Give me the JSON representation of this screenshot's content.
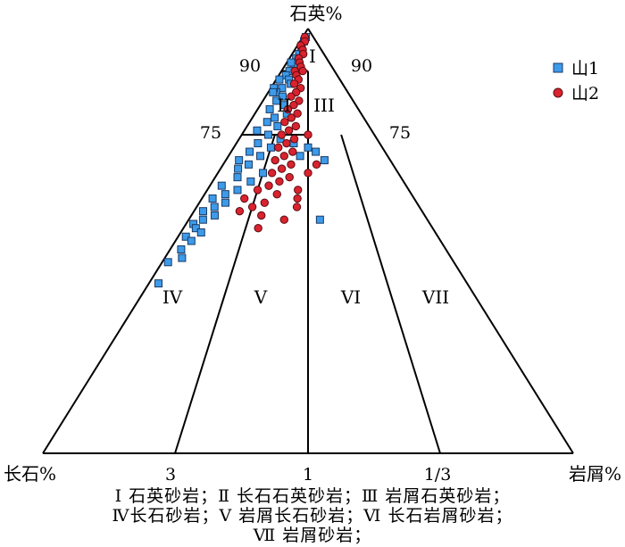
{
  "chart_data": {
    "type": "scatter",
    "diagram": "ternary",
    "apex_labels": {
      "top": "石英%",
      "left": "长石%",
      "right": "岩屑%"
    },
    "quartz_tick_labels": {
      "left_90": "90",
      "right_90": "90",
      "left_75": "75",
      "right_75": "75"
    },
    "base_ratio_labels": {
      "left": "3",
      "center": "1",
      "right": "1/3"
    },
    "field_labels": [
      "I",
      "II",
      "III",
      "IV",
      "V",
      "VI",
      "VII"
    ],
    "legend": {
      "placement": "top-right"
    },
    "series": [
      {
        "name": "山1",
        "marker": "square",
        "color": "#3d9be9",
        "points": [
          [
            98,
            0.3
          ],
          [
            97,
            0.25
          ],
          [
            96,
            0.2
          ],
          [
            95,
            0.25
          ],
          [
            94,
            0.22
          ],
          [
            93,
            0.18
          ],
          [
            92,
            0.25
          ],
          [
            91,
            0.2
          ],
          [
            92,
            0.1
          ],
          [
            90,
            0.15
          ],
          [
            89,
            0.12
          ],
          [
            88,
            0.2
          ],
          [
            87,
            0.25
          ],
          [
            86,
            0.15
          ],
          [
            85,
            0.1
          ],
          [
            84,
            0.2
          ],
          [
            88,
            0.05
          ],
          [
            86,
            0.04
          ],
          [
            85,
            0.06
          ],
          [
            83,
            0.15
          ],
          [
            82,
            0.25
          ],
          [
            81,
            0.12
          ],
          [
            80,
            0.3
          ],
          [
            79,
            0.2
          ],
          [
            78,
            0.15
          ],
          [
            77,
            0.25
          ],
          [
            76,
            0.1
          ],
          [
            75,
            0.2
          ],
          [
            74,
            0.3
          ],
          [
            73,
            0.15
          ],
          [
            72,
            0.25
          ],
          [
            71,
            0.12
          ],
          [
            70,
            0.2
          ],
          [
            69,
            0.08
          ],
          [
            68,
            0.15
          ],
          [
            67,
            0.1
          ],
          [
            66,
            0.25
          ],
          [
            65,
            0.12
          ],
          [
            64,
            0.2
          ],
          [
            63,
            0.06
          ],
          [
            62,
            0.15
          ],
          [
            61,
            0.1
          ],
          [
            60,
            0.05
          ],
          [
            59,
            0.12
          ],
          [
            58,
            0.08
          ],
          [
            57,
            0.04
          ],
          [
            56,
            0.1
          ],
          [
            55,
            0.06
          ],
          [
            54,
            0.03
          ],
          [
            53,
            0.05
          ],
          [
            52,
            0.08
          ],
          [
            51,
            0.03
          ],
          [
            50,
            0.06
          ],
          [
            72,
            0.5
          ],
          [
            71,
            0.55
          ],
          [
            70,
            0.45
          ],
          [
            73,
            0.4
          ],
          [
            69,
            0.6
          ],
          [
            55,
            0.55
          ],
          [
            48,
            0.04
          ],
          [
            46,
            0.06
          ],
          [
            45,
            0.02
          ],
          [
            40,
            0.03
          ]
        ]
      },
      {
        "name": "山2",
        "marker": "circle",
        "color": "#d9232e",
        "points": [
          [
            98,
            0.2
          ],
          [
            97,
            0.3
          ],
          [
            96,
            0.15
          ],
          [
            95,
            0.3
          ],
          [
            94,
            0.35
          ],
          [
            93,
            0.25
          ],
          [
            92,
            0.3
          ],
          [
            91,
            0.35
          ],
          [
            90,
            0.25
          ],
          [
            90,
            0.4
          ],
          [
            89,
            0.3
          ],
          [
            88,
            0.35
          ],
          [
            87,
            0.3
          ],
          [
            86,
            0.4
          ],
          [
            85,
            0.35
          ],
          [
            84,
            0.3
          ],
          [
            83,
            0.4
          ],
          [
            82,
            0.35
          ],
          [
            81,
            0.3
          ],
          [
            80,
            0.4
          ],
          [
            79,
            0.35
          ],
          [
            78,
            0.3
          ],
          [
            77,
            0.4
          ],
          [
            76,
            0.35
          ],
          [
            75,
            0.3
          ],
          [
            74,
            0.4
          ],
          [
            73,
            0.35
          ],
          [
            72,
            0.3
          ],
          [
            71,
            0.4
          ],
          [
            70,
            0.35
          ],
          [
            69,
            0.3
          ],
          [
            68,
            0.4
          ],
          [
            67,
            0.35
          ],
          [
            66,
            0.3
          ],
          [
            65,
            0.4
          ],
          [
            64,
            0.35
          ],
          [
            63,
            0.3
          ],
          [
            62,
            0.25
          ],
          [
            61,
            0.35
          ],
          [
            60,
            0.2
          ],
          [
            59,
            0.3
          ],
          [
            58,
            0.25
          ],
          [
            57,
            0.2
          ],
          [
            56,
            0.3
          ],
          [
            55,
            0.4
          ],
          [
            62,
            0.45
          ],
          [
            58,
            0.45
          ],
          [
            75,
            0.5
          ],
          [
            68,
            0.55
          ],
          [
            66,
            0.5
          ],
          [
            60,
            0.45
          ],
          [
            53,
            0.3
          ]
        ]
      }
    ]
  },
  "caption": {
    "line1": "Ⅰ 石英砂岩；Ⅱ 长石石英砂岩；Ⅲ 岩屑石英砂岩；",
    "line2": "Ⅳ长石砂岩；Ⅴ 岩屑长石砂岩；Ⅵ 长石岩屑砂岩；",
    "line3": "Ⅶ 岩屑砂岩；"
  }
}
